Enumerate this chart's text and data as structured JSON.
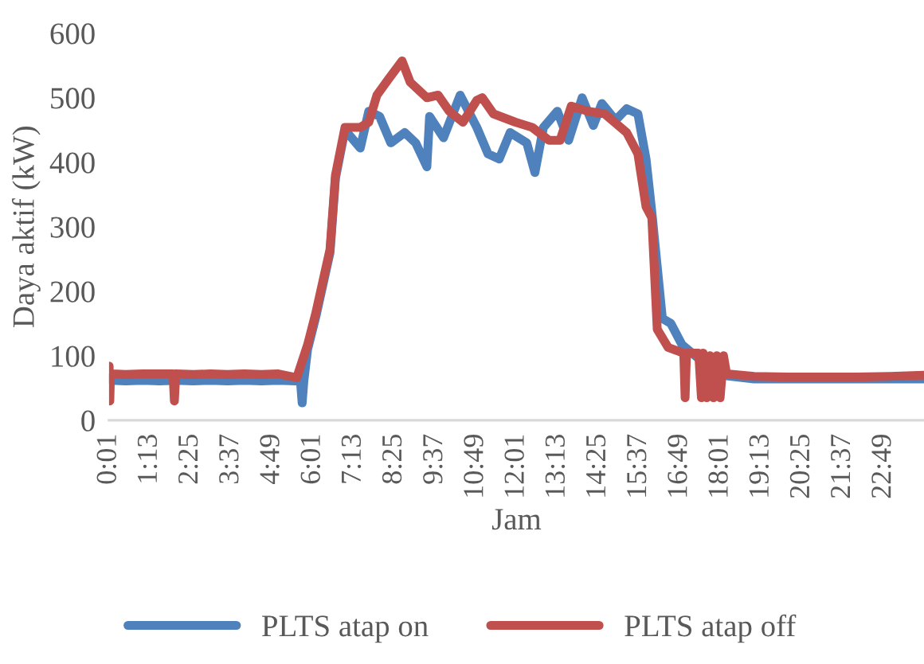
{
  "chart_data": {
    "type": "line",
    "xlabel": "Jam",
    "ylabel": "Daya aktif (kW)",
    "xlim": [
      0.0167,
      24.0
    ],
    "xticks": [
      {
        "value": 0.0167,
        "label": "0:01"
      },
      {
        "value": 1.2167,
        "label": "1:13"
      },
      {
        "value": 2.4167,
        "label": "2:25"
      },
      {
        "value": 3.6167,
        "label": "3:37"
      },
      {
        "value": 4.8167,
        "label": "4:49"
      },
      {
        "value": 6.0167,
        "label": "6:01"
      },
      {
        "value": 7.2167,
        "label": "7:13"
      },
      {
        "value": 8.4167,
        "label": "8:25"
      },
      {
        "value": 9.6167,
        "label": "9:37"
      },
      {
        "value": 10.8167,
        "label": "10:49"
      },
      {
        "value": 12.0167,
        "label": "12:01"
      },
      {
        "value": 13.2167,
        "label": "13:13"
      },
      {
        "value": 14.4167,
        "label": "14:25"
      },
      {
        "value": 15.6167,
        "label": "15:37"
      },
      {
        "value": 16.8167,
        "label": "16:49"
      },
      {
        "value": 18.0167,
        "label": "18:01"
      },
      {
        "value": 19.2167,
        "label": "19:13"
      },
      {
        "value": 20.4167,
        "label": "20:25"
      },
      {
        "value": 21.6167,
        "label": "21:37"
      },
      {
        "value": 22.8167,
        "label": "22:49"
      }
    ],
    "ylim": [
      0,
      600
    ],
    "yticks": [
      0,
      100,
      200,
      300,
      400,
      500,
      600
    ],
    "grid": false,
    "legend": "bottom",
    "marker": "none",
    "line_style": "solid",
    "series": [
      {
        "name": "PLTS atap on",
        "color": "#4f81bd",
        "x": [
          0.02,
          0.1,
          0.5,
          1.0,
          1.5,
          2.0,
          2.5,
          3.0,
          3.5,
          4.0,
          4.5,
          5.0,
          5.5,
          5.65,
          5.7,
          5.75,
          5.86,
          6.1,
          6.52,
          6.68,
          6.96,
          7.41,
          7.66,
          7.98,
          8.31,
          8.72,
          9.04,
          9.37,
          9.45,
          9.86,
          10.35,
          10.84,
          11.17,
          11.5,
          11.82,
          12.31,
          12.55,
          12.8,
          13.21,
          13.54,
          13.94,
          14.27,
          14.52,
          14.92,
          15.25,
          15.58,
          15.82,
          15.99,
          16.3,
          16.55,
          16.88,
          17.5,
          18.19,
          19.0,
          20.0,
          21.0,
          22.0,
          23.0,
          24.0
        ],
        "values": [
          65,
          62,
          61,
          62,
          61,
          62,
          61,
          62,
          61,
          62,
          61,
          62,
          61,
          61,
          27,
          61,
          110,
          160,
          260,
          375,
          450,
          422,
          479,
          471,
          430,
          446,
          430,
          393,
          471,
          438,
          504,
          454,
          413,
          405,
          446,
          430,
          384,
          454,
          479,
          434,
          500,
          457,
          491,
          465,
          483,
          475,
          405,
          323,
          158,
          150,
          117,
          90,
          69,
          64,
          64,
          64,
          64,
          64,
          64
        ]
      },
      {
        "name": "PLTS atap off",
        "color": "#c0504d",
        "x": [
          0.02,
          0.04,
          0.06,
          0.1,
          0.5,
          1.0,
          1.9,
          1.94,
          1.98,
          2.5,
          3.0,
          3.5,
          4.0,
          4.5,
          5.0,
          5.54,
          5.86,
          6.1,
          6.52,
          6.68,
          6.96,
          7.41,
          7.66,
          7.9,
          8.23,
          8.64,
          8.88,
          9.37,
          9.7,
          10.03,
          10.43,
          10.84,
          11.0,
          11.33,
          11.98,
          12.47,
          12.96,
          13.29,
          13.62,
          14.11,
          14.6,
          15.25,
          15.58,
          15.82,
          15.99,
          16.15,
          16.47,
          16.93,
          16.97,
          17.01,
          17.37,
          17.45,
          17.5,
          17.6,
          17.7,
          17.8,
          17.9,
          18.0,
          18.1,
          18.19,
          19.0,
          20.0,
          21.0,
          22.0,
          23.0,
          24.0
        ],
        "values": [
          84,
          30,
          72,
          72,
          71,
          72,
          72,
          30,
          72,
          71,
          72,
          71,
          72,
          71,
          72,
          66,
          117,
          166,
          265,
          380,
          454,
          454,
          462,
          504,
          528,
          557,
          524,
          500,
          504,
          479,
          462,
          496,
          500,
          475,
          462,
          454,
          434,
          434,
          487,
          479,
          475,
          446,
          413,
          331,
          314,
          141,
          113,
          104,
          35,
          104,
          104,
          35,
          104,
          35,
          100,
          35,
          100,
          35,
          100,
          72,
          68,
          67,
          67,
          67,
          68,
          70
        ]
      }
    ]
  }
}
